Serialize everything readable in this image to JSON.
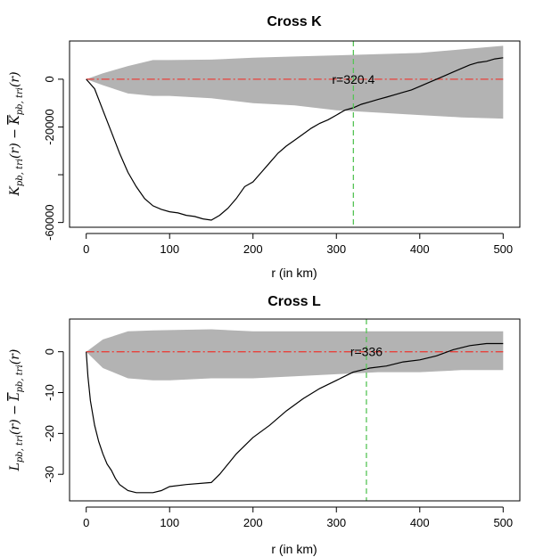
{
  "colors": {
    "envelope": "#b3b3b3",
    "curve": "#000000",
    "zero_line": "#e8413b",
    "marker_line": "#55c455",
    "axes": "#000000"
  },
  "chart_data": [
    {
      "type": "line",
      "title": "Cross K",
      "xlabel": "r (in km)",
      "ylabel": "K_pb,tri(r) − K̄_pb,tri(r)",
      "ylabel_parts": {
        "main1": "K",
        "sub1": "pb, tri",
        "mid": "(r) − ",
        "main2": "K",
        "sub2": "pb, tri",
        "end": "(r)"
      },
      "xlim": [
        -20,
        520
      ],
      "ylim": [
        -62000,
        16000
      ],
      "xticks": [
        0,
        100,
        200,
        300,
        400,
        500
      ],
      "xtick_labels": [
        "0",
        "100",
        "200",
        "300",
        "400",
        "500"
      ],
      "yticks": [
        -60000,
        -40000,
        -20000,
        0
      ],
      "ytick_labels": [
        "-60000",
        "",
        "-20000",
        "0"
      ],
      "marker": {
        "x": 320.4,
        "label": "r=320.4",
        "label_y": 0
      },
      "envelope": {
        "r": [
          0,
          20,
          50,
          80,
          100,
          150,
          200,
          250,
          300,
          350,
          400,
          450,
          500
        ],
        "upper": [
          0,
          2500,
          5500,
          8000,
          8000,
          8200,
          9000,
          9500,
          10000,
          10500,
          11000,
          12500,
          14000
        ],
        "lower": [
          0,
          -2500,
          -6000,
          -7000,
          -7000,
          -8000,
          -10000,
          -11000,
          -13000,
          -14000,
          -15000,
          -16000,
          -16500
        ]
      },
      "series": [
        {
          "r": [
            0,
            10,
            20,
            30,
            40,
            50,
            60,
            70,
            80,
            90,
            100,
            110,
            120,
            130,
            140,
            150,
            160,
            170,
            180,
            190,
            200,
            210,
            220,
            230,
            240,
            250,
            260,
            270,
            280,
            290,
            300,
            310,
            320,
            330,
            340,
            350,
            360,
            370,
            380,
            390,
            400,
            410,
            420,
            430,
            440,
            450,
            460,
            470,
            480,
            490,
            500
          ],
          "values": [
            0,
            -4000,
            -13000,
            -22000,
            -31000,
            -39000,
            -45000,
            -50000,
            -53000,
            -54500,
            -55500,
            -56000,
            -57000,
            -57500,
            -58500,
            -59000,
            -57000,
            -54000,
            -50000,
            -45000,
            -43000,
            -39000,
            -35000,
            -31000,
            -28000,
            -25500,
            -23000,
            -20500,
            -18500,
            -17000,
            -15000,
            -13000,
            -12000,
            -10500,
            -9500,
            -8500,
            -7500,
            -6500,
            -5500,
            -4500,
            -3000,
            -1500,
            0,
            1500,
            3000,
            4500,
            6000,
            7000,
            7500,
            8500,
            9000
          ]
        }
      ]
    },
    {
      "type": "line",
      "title": "Cross L",
      "xlabel": "r (in km)",
      "ylabel": "L_pb,tri(r) − L̄_pb,tri(r)",
      "ylabel_parts": {
        "main1": "L",
        "sub1": "pb, tri",
        "mid": "(r) − ",
        "main2": "L",
        "sub2": "pb, tri",
        "end": "(r)"
      },
      "xlim": [
        -20,
        520
      ],
      "ylim": [
        -36.5,
        8
      ],
      "xticks": [
        0,
        100,
        200,
        300,
        400,
        500
      ],
      "xtick_labels": [
        "0",
        "100",
        "200",
        "300",
        "400",
        "500"
      ],
      "yticks": [
        -30,
        -20,
        -10,
        0
      ],
      "ytick_labels": [
        "-30",
        "-20",
        "-10",
        "0"
      ],
      "marker": {
        "x": 336,
        "label": "r=336",
        "label_y": 0
      },
      "envelope": {
        "r": [
          0,
          20,
          50,
          80,
          100,
          150,
          200,
          250,
          300,
          350,
          400,
          450,
          500
        ],
        "upper": [
          0,
          3,
          5,
          5.2,
          5.3,
          5.5,
          5,
          5,
          5,
          5,
          5,
          5,
          5
        ],
        "lower": [
          0,
          -4,
          -6.5,
          -7,
          -7,
          -6.5,
          -6.5,
          -6,
          -5.5,
          -5,
          -5,
          -4.5,
          -4.5
        ]
      },
      "series": [
        {
          "r": [
            0,
            2,
            5,
            10,
            15,
            20,
            25,
            30,
            35,
            40,
            50,
            60,
            70,
            80,
            90,
            100,
            120,
            150,
            160,
            170,
            180,
            190,
            200,
            220,
            240,
            260,
            280,
            300,
            320,
            340,
            360,
            380,
            400,
            420,
            440,
            460,
            480,
            500
          ],
          "values": [
            0,
            -6,
            -12,
            -18,
            -22,
            -25,
            -27.5,
            -29,
            -31,
            -32.5,
            -34,
            -34.5,
            -34.5,
            -34.5,
            -34,
            -33,
            -32.5,
            -32,
            -30,
            -27.5,
            -25,
            -23,
            -21,
            -18,
            -14.5,
            -11.5,
            -9,
            -7,
            -5,
            -4,
            -3.5,
            -2.5,
            -2,
            -1,
            0.5,
            1.5,
            2,
            2
          ]
        }
      ]
    }
  ]
}
